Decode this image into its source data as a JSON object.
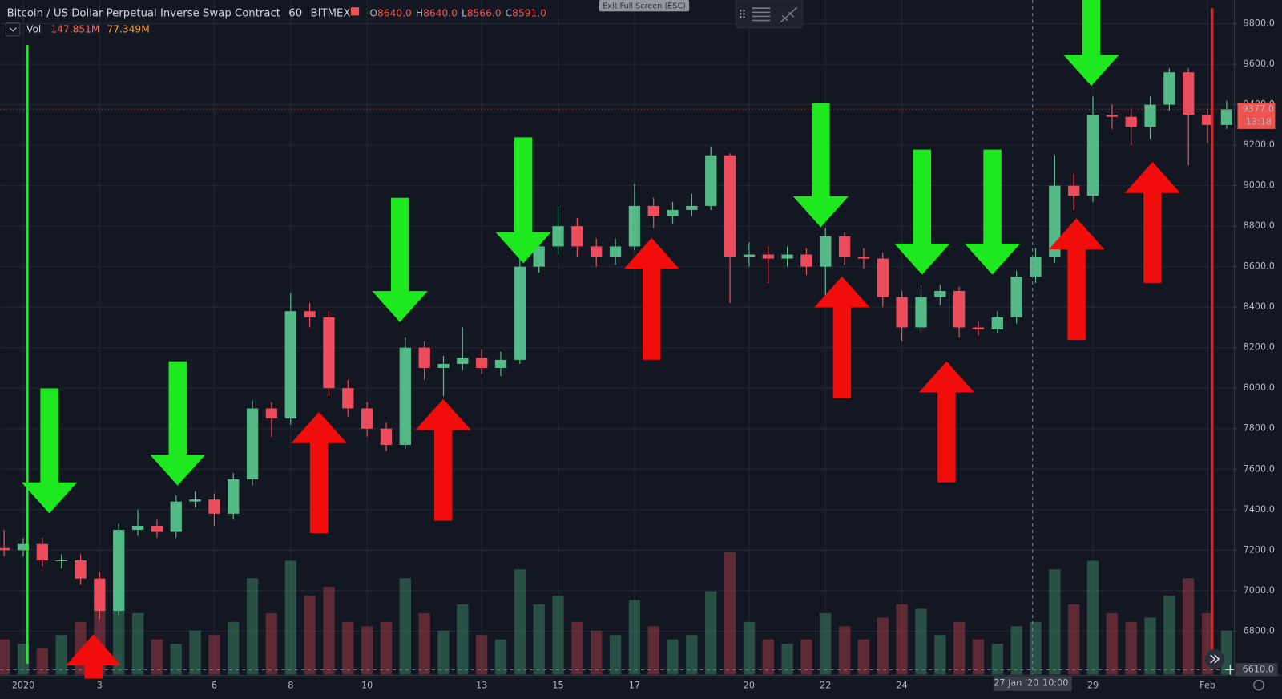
{
  "chart_data": {
    "type": "candlestick",
    "title": "Bitcoin / US Dollar Perpetual Inverse Swap Contract",
    "interval": "60",
    "exchange": "BITMEX",
    "ohlc_legend": [
      {
        "key": "O",
        "value": "8640.0"
      },
      {
        "key": "H",
        "value": "8640.0"
      },
      {
        "key": "L",
        "value": "8566.0"
      },
      {
        "key": "C",
        "value": "8591.0"
      }
    ],
    "volume_legend": {
      "label": "Vol",
      "values": [
        "147.851M",
        "77.349M"
      ]
    },
    "button": "Exit Full Screen (ESC)",
    "up_color": "#53b987",
    "down_color": "#eb4d5c",
    "grid": true,
    "x": [
      0.5,
      1,
      1.5,
      2,
      2.5,
      3,
      3.5,
      4,
      4.5,
      5,
      5.5,
      6,
      6.5,
      7,
      7.5,
      8,
      8.5,
      9,
      9.5,
      10,
      10.5,
      11,
      11.5,
      12,
      12.5,
      13,
      13.5,
      14,
      14.5,
      15,
      15.5,
      16,
      16.5,
      17,
      17.5,
      18,
      18.5,
      19,
      19.5,
      20,
      20.5,
      21,
      21.5,
      22,
      22.5,
      23,
      23.5,
      24,
      24.5,
      25,
      25.5,
      26,
      26.5,
      27,
      27.5,
      28,
      28.5,
      29,
      29.5,
      30,
      30.5,
      31,
      31.5,
      32,
      32.5
    ],
    "open": [
      7210,
      7200,
      7230,
      7150,
      7150,
      7060,
      6900,
      7300,
      7320,
      7290,
      7440,
      7450,
      7380,
      7550,
      7900,
      7850,
      8380,
      8350,
      8000,
      7900,
      7800,
      7720,
      8200,
      8100,
      8120,
      8150,
      8100,
      8140,
      8600,
      8700,
      8800,
      8700,
      8650,
      8700,
      8900,
      8850,
      8880,
      8900,
      9150,
      8650,
      8660,
      8640,
      8660,
      8600,
      8750,
      8650,
      8640,
      8450,
      8300,
      8450,
      8480,
      8300,
      8290,
      8350,
      8550,
      8650,
      9000,
      8950,
      9350,
      9340,
      9290,
      9400,
      9560,
      9350,
      9300
    ],
    "high": [
      7300,
      7260,
      7260,
      7180,
      7180,
      7090,
      7330,
      7400,
      7350,
      7470,
      7490,
      7480,
      7580,
      7940,
      7930,
      8470,
      8420,
      8380,
      8040,
      7930,
      7830,
      8250,
      8230,
      8160,
      8300,
      8190,
      8180,
      8640,
      8760,
      8900,
      8840,
      8740,
      8740,
      9010,
      8940,
      8920,
      8960,
      9190,
      9160,
      8720,
      8700,
      8700,
      8690,
      8790,
      8770,
      8690,
      8670,
      8480,
      8510,
      8510,
      8500,
      8330,
      8380,
      8580,
      8690,
      9150,
      9060,
      9440,
      9400,
      9380,
      9440,
      9580,
      9580,
      9380,
      9420
    ],
    "low": [
      7170,
      7170,
      7120,
      7110,
      7030,
      6860,
      6880,
      7270,
      7260,
      7260,
      7410,
      7320,
      7350,
      7520,
      7760,
      7820,
      8300,
      7960,
      7860,
      7760,
      7690,
      7700,
      8040,
      7960,
      8090,
      8070,
      8060,
      8120,
      8570,
      8660,
      8650,
      8600,
      8610,
      8680,
      8790,
      8810,
      8850,
      8880,
      8420,
      8600,
      8520,
      8600,
      8560,
      8450,
      8610,
      8590,
      8400,
      8230,
      8270,
      8410,
      8250,
      8260,
      8270,
      8320,
      8520,
      8620,
      8880,
      8920,
      9280,
      9200,
      9230,
      9370,
      9100,
      9210,
      9280
    ],
    "close": [
      7200,
      7230,
      7150,
      7150,
      7060,
      6900,
      7300,
      7320,
      7290,
      7440,
      7450,
      7380,
      7550,
      7900,
      7850,
      8380,
      8350,
      8000,
      7900,
      7800,
      7720,
      8200,
      8100,
      8120,
      8150,
      8100,
      8140,
      8600,
      8700,
      8800,
      8700,
      8650,
      8700,
      8900,
      8850,
      8880,
      8900,
      9150,
      8650,
      8660,
      8640,
      8660,
      8600,
      8750,
      8650,
      8640,
      8450,
      8300,
      8450,
      8480,
      8300,
      8290,
      8350,
      8550,
      8650,
      9000,
      8950,
      9350,
      9340,
      9290,
      9400,
      9560,
      9350,
      9300,
      9377
    ],
    "volume": [
      40,
      35,
      30,
      45,
      60,
      80,
      120,
      70,
      40,
      35,
      50,
      45,
      60,
      110,
      70,
      130,
      90,
      100,
      60,
      55,
      60,
      110,
      70,
      50,
      80,
      45,
      40,
      120,
      80,
      90,
      60,
      50,
      45,
      85,
      55,
      40,
      45,
      95,
      140,
      60,
      40,
      35,
      40,
      70,
      55,
      40,
      65,
      80,
      75,
      45,
      60,
      40,
      35,
      55,
      60,
      120,
      80,
      130,
      70,
      60,
      65,
      90,
      110,
      70,
      50
    ],
    "xlim": [
      0.4,
      32.7
    ],
    "xticks": [
      {
        "value": 1,
        "label": "2020"
      },
      3,
      6,
      8,
      10,
      13,
      15,
      17,
      20,
      22,
      24,
      29,
      {
        "value": 32,
        "label": "Feb"
      }
    ],
    "ylim": [
      6586,
      9917
    ],
    "yticks": [
      {
        "value": 6800,
        "label": "6800.0"
      },
      {
        "value": 7000,
        "label": "7000.0"
      },
      {
        "value": 7200,
        "label": "7200.0"
      },
      {
        "value": 7400,
        "label": "7400.0"
      },
      {
        "value": 7600,
        "label": "7600.0"
      },
      {
        "value": 7800,
        "label": "7800.0"
      },
      {
        "value": 8000,
        "label": "8000.0"
      },
      {
        "value": 8200,
        "label": "8200.0"
      },
      {
        "value": 8400,
        "label": "8400.0"
      },
      {
        "value": 8600,
        "label": "8600.0"
      },
      {
        "value": 8800,
        "label": "8800.0"
      },
      {
        "value": 9000,
        "label": "9000.0"
      },
      {
        "value": 9200,
        "label": "9200.0"
      },
      {
        "value": 9400,
        "label": "9400.0"
      },
      {
        "value": 9600,
        "label": "9600.0"
      },
      {
        "value": 9800,
        "label": "9800.0"
      }
    ],
    "last_price": {
      "value": 9377,
      "label": "9377.0",
      "countdown": "13:18"
    },
    "crosshair": {
      "x": 27.42,
      "y": 6610,
      "x_label": "27 Jan '20",
      "time_label": "10:00",
      "y_label": "6610.0"
    }
  }
}
